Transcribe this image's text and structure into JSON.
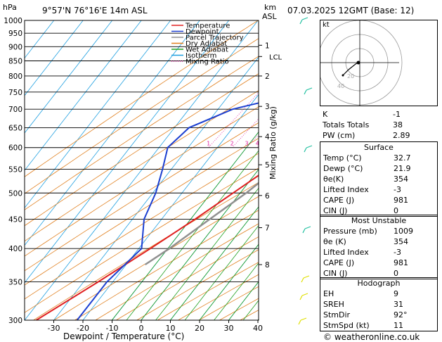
{
  "header": {
    "pressure_unit": "hPa",
    "location": "9°57'N  76°16'E  14m  ASL",
    "height_unit_1": "km",
    "height_unit_2": "ASL",
    "datetime": "07.03.2025  12GMT  (Base: 12)"
  },
  "chart_data": {
    "type": "line",
    "xlabel": "Dewpoint / Temperature (°C)",
    "ylabel_right": "Mixing Ratio (g/kg)",
    "y_scale": "log-pressure",
    "pressure_levels": [
      300,
      350,
      400,
      450,
      500,
      550,
      600,
      650,
      700,
      750,
      800,
      850,
      900,
      950,
      1000
    ],
    "x_ticks": [
      -30,
      -20,
      -10,
      0,
      10,
      20,
      30,
      40
    ],
    "xlim": [
      -40,
      40
    ],
    "ylim": [
      1000,
      300
    ],
    "km_ticks": [
      {
        "km": "1",
        "p": 905
      },
      {
        "km": "2",
        "p": 800
      },
      {
        "km": "3",
        "p": 708
      },
      {
        "km": "4",
        "p": 627
      },
      {
        "km": "5",
        "p": 560
      },
      {
        "km": "6",
        "p": 495
      },
      {
        "km": "7",
        "p": 435
      },
      {
        "km": "8",
        "p": 375
      }
    ],
    "lcl_label": "LCL",
    "lcl_p": 865,
    "mixing_ratio_labels": [
      "1",
      "2",
      "3",
      "4",
      "6",
      "8",
      "10",
      "15",
      "20",
      "25"
    ],
    "mixing_ratio_values": [
      1,
      2,
      3,
      4,
      6,
      8,
      10,
      15,
      20,
      25
    ],
    "legend": [
      {
        "name": "Temperature",
        "color": "#e02020",
        "style": "solid"
      },
      {
        "name": "Dewpoint",
        "color": "#1c3fd0",
        "style": "solid"
      },
      {
        "name": "Parcel Trajectory",
        "color": "#909090",
        "style": "solid"
      },
      {
        "name": "Dry Adiabat",
        "color": "#e08020",
        "style": "solid"
      },
      {
        "name": "Wet Adiabat",
        "color": "#20a020",
        "style": "solid"
      },
      {
        "name": "Isotherm",
        "color": "#20a0e0",
        "style": "solid"
      },
      {
        "name": "Mixing Ratio",
        "color": "#e020a0",
        "style": "dotted"
      }
    ],
    "series": [
      {
        "name": "Temperature",
        "points": [
          {
            "p": 1000,
            "t": 32.7
          },
          {
            "p": 950,
            "t": 27.5
          },
          {
            "p": 900,
            "t": 23.5
          },
          {
            "p": 850,
            "t": 20.0
          },
          {
            "p": 800,
            "t": 18.0
          },
          {
            "p": 750,
            "t": 16.5
          },
          {
            "p": 700,
            "t": 14.0
          },
          {
            "p": 650,
            "t": 10.5
          },
          {
            "p": 600,
            "t": 7.0
          },
          {
            "p": 550,
            "t": 3.0
          },
          {
            "p": 500,
            "t": -2.5
          },
          {
            "p": 450,
            "t": -8.5
          },
          {
            "p": 400,
            "t": -16.0
          },
          {
            "p": 350,
            "t": -25.0
          },
          {
            "p": 300,
            "t": -36.0
          }
        ]
      },
      {
        "name": "Dewpoint",
        "points": [
          {
            "p": 1000,
            "t": 21.9
          },
          {
            "p": 950,
            "t": 20.5
          },
          {
            "p": 900,
            "t": 18.5
          },
          {
            "p": 850,
            "t": 16.0
          },
          {
            "p": 800,
            "t": 11.0
          },
          {
            "p": 750,
            "t": -5.0
          },
          {
            "p": 700,
            "t": -25.0
          },
          {
            "p": 650,
            "t": -35.0
          },
          {
            "p": 600,
            "t": -37.0
          },
          {
            "p": 550,
            "t": -33.0
          },
          {
            "p": 500,
            "t": -29.0
          },
          {
            "p": 450,
            "t": -26.0
          },
          {
            "p": 400,
            "t": -19.0
          },
          {
            "p": 350,
            "t": -22.0
          },
          {
            "p": 300,
            "t": -22.0
          }
        ]
      },
      {
        "name": "Parcel Trajectory",
        "points": [
          {
            "p": 1000,
            "t": 32.7
          },
          {
            "p": 950,
            "t": 28.5
          },
          {
            "p": 900,
            "t": 24.5
          },
          {
            "p": 865,
            "t": 21.5
          },
          {
            "p": 800,
            "t": 19.0
          },
          {
            "p": 700,
            "t": 14.8
          },
          {
            "p": 600,
            "t": 9.5
          },
          {
            "p": 500,
            "t": 2.0
          },
          {
            "p": 450,
            "t": -3.5
          },
          {
            "p": 400,
            "t": -9.5
          },
          {
            "p": 375,
            "t": -13.5
          }
        ]
      }
    ],
    "wind_barbs_colors": [
      "#e0e000",
      "#20c0a0"
    ]
  },
  "hodograph": {
    "unit_label": "kt",
    "ring_labels": [
      "20",
      "40"
    ]
  },
  "indices": [
    {
      "label": "K",
      "value": "-1"
    },
    {
      "label": "Totals Totals",
      "value": "38"
    },
    {
      "label": "PW (cm)",
      "value": "2.89"
    }
  ],
  "surface": {
    "title": "Surface",
    "rows": [
      {
        "label": "Temp (°C)",
        "value": "32.7"
      },
      {
        "label": "Dewp (°C)",
        "value": "21.9"
      },
      {
        "label": "θe(K)",
        "value": "354"
      },
      {
        "label": "Lifted Index",
        "value": "-3"
      },
      {
        "label": "CAPE (J)",
        "value": "981"
      },
      {
        "label": "CIN (J)",
        "value": "0"
      }
    ]
  },
  "most_unstable": {
    "title": "Most Unstable",
    "rows": [
      {
        "label": "Pressure (mb)",
        "value": "1009"
      },
      {
        "label": "θe (K)",
        "value": "354"
      },
      {
        "label": "Lifted Index",
        "value": "-3"
      },
      {
        "label": "CAPE (J)",
        "value": "981"
      },
      {
        "label": "CIN (J)",
        "value": "0"
      }
    ]
  },
  "hodograph_table": {
    "title": "Hodograph",
    "rows": [
      {
        "label": "EH",
        "value": "9"
      },
      {
        "label": "SREH",
        "value": "31"
      },
      {
        "label": "StmDir",
        "value": "92°"
      },
      {
        "label": "StmSpd (kt)",
        "value": "11"
      }
    ]
  },
  "footer": {
    "credit": "© weatheronline.co.uk"
  }
}
